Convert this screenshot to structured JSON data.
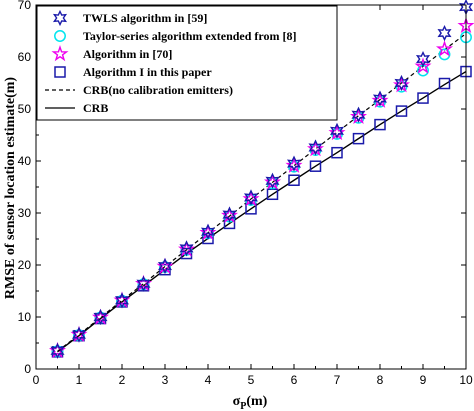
{
  "chart_data": {
    "type": "line",
    "title": "",
    "xlabel": "σ",
    "xlabel_sub": "P",
    "xlabel_unit": "(m)",
    "ylabel": "RMSE of sensor location estimate(m)",
    "xlim": [
      0,
      10
    ],
    "ylim": [
      0,
      70
    ],
    "xticks": [
      "0",
      "1",
      "2",
      "3",
      "4",
      "5",
      "6",
      "7",
      "8",
      "9",
      "10"
    ],
    "yticks": [
      "0",
      "10",
      "20",
      "30",
      "40",
      "50",
      "60",
      "70"
    ],
    "grid": false,
    "legend_position": "top-left",
    "x": [
      0.5,
      1,
      1.5,
      2,
      2.5,
      3,
      3.5,
      4,
      4.5,
      5,
      5.5,
      6,
      6.5,
      7,
      7.5,
      8,
      8.5,
      9,
      9.5,
      10
    ],
    "series": [
      {
        "name": "TWLS algorithm in [59]",
        "marker": "hexagram-star",
        "color": "#1a1aaa",
        "values": [
          3.5,
          6.6,
          10.0,
          13.2,
          16.4,
          19.8,
          23.2,
          26.4,
          29.7,
          33.0,
          36.2,
          39.5,
          42.6,
          45.8,
          48.9,
          52.0,
          55.0,
          59.6,
          64.6,
          69.6
        ]
      },
      {
        "name": "Taylor-series algorithm extended from [8]",
        "marker": "circle",
        "color": "#00e5ee",
        "values": [
          3.4,
          6.5,
          9.9,
          13.1,
          16.3,
          19.6,
          22.9,
          26.1,
          29.3,
          32.5,
          35.7,
          38.9,
          42.1,
          45.2,
          48.3,
          51.4,
          54.3,
          57.4,
          60.5,
          63.8
        ]
      },
      {
        "name": "Algorithm in [70]",
        "marker": "star",
        "color": "#ee00ee",
        "values": [
          3.5,
          6.6,
          9.9,
          13.2,
          16.4,
          19.7,
          23.0,
          26.2,
          29.5,
          32.7,
          35.9,
          39.1,
          42.3,
          45.4,
          48.5,
          51.6,
          54.6,
          58.2,
          61.5,
          66.0
        ]
      },
      {
        "name": "Algorithm I in this paper",
        "marker": "square",
        "color": "#1a1aaa",
        "values": [
          3.3,
          6.4,
          9.7,
          12.9,
          16.0,
          19.1,
          22.2,
          25.1,
          28.0,
          30.8,
          33.6,
          36.3,
          39.0,
          41.6,
          44.3,
          47.0,
          49.6,
          52.1,
          54.9,
          57.2
        ]
      },
      {
        "name": "CRB(no calibration emitters)",
        "marker": "none",
        "line": "dashed",
        "color": "#000000",
        "values": [
          3.4,
          6.6,
          9.9,
          13.2,
          16.4,
          19.7,
          22.9,
          26.2,
          29.4,
          32.7,
          35.9,
          39.1,
          42.3,
          45.5,
          48.7,
          51.8,
          55.0,
          58.2,
          61.4,
          64.5
        ]
      },
      {
        "name": "CRB",
        "marker": "none",
        "line": "solid",
        "color": "#000000",
        "values": [
          3.3,
          6.4,
          9.7,
          12.9,
          16.0,
          19.1,
          22.2,
          25.1,
          28.0,
          30.8,
          33.6,
          36.3,
          39.0,
          41.6,
          44.3,
          47.0,
          49.6,
          52.1,
          54.7,
          57.2
        ]
      }
    ]
  }
}
